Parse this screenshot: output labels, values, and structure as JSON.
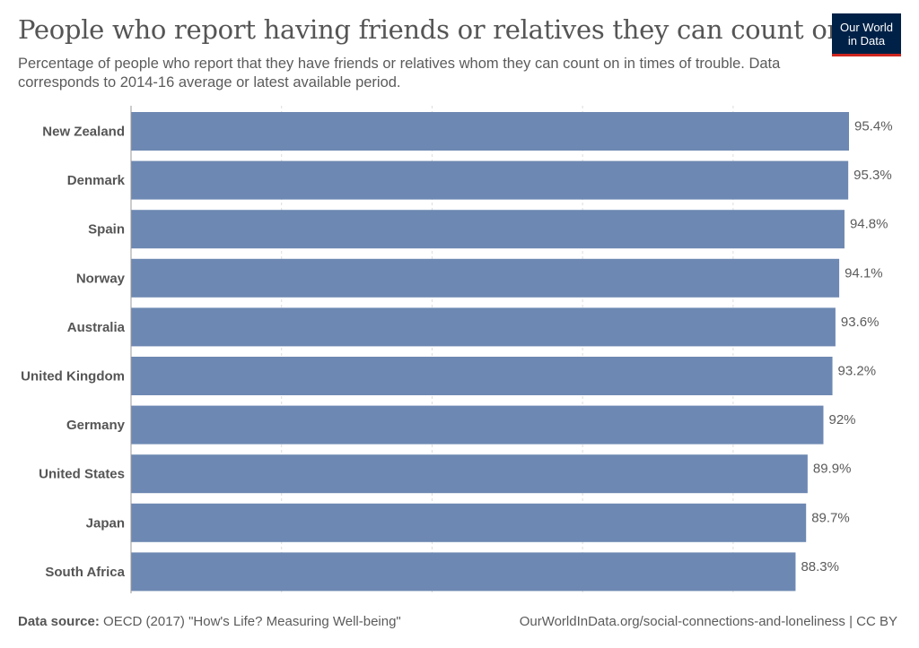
{
  "header": {
    "title": "People who report having friends or relatives they can count on",
    "subtitle": "Percentage of people who report that they have friends or relatives whom they can count on in times of trouble. Data corresponds to 2014-16 average or latest available period.",
    "logo_line1": "Our World",
    "logo_line2": "in Data"
  },
  "footer": {
    "source_label": "Data source:",
    "source_text": "OECD (2017) \"How's Life? Measuring Well-being\"",
    "url_text": "OurWorldInData.org/social-connections-and-loneliness | CC BY"
  },
  "colors": {
    "bar": "#6d88b2",
    "label": "#555555",
    "value_label": "#5b5b5b",
    "grid": "#dddddd",
    "axis": "#999999",
    "logo_bg": "#002147",
    "logo_accent": "#ce261e"
  },
  "chart_data": {
    "type": "bar",
    "orientation": "horizontal",
    "categories": [
      "New Zealand",
      "Denmark",
      "Spain",
      "Norway",
      "Australia",
      "United Kingdom",
      "Germany",
      "United States",
      "Japan",
      "South Africa"
    ],
    "values": [
      95.4,
      95.3,
      94.8,
      94.1,
      93.6,
      93.2,
      92,
      89.9,
      89.7,
      88.3
    ],
    "value_labels": [
      "95.4%",
      "95.3%",
      "94.8%",
      "94.1%",
      "93.6%",
      "93.2%",
      "92%",
      "89.9%",
      "89.7%",
      "88.3%"
    ],
    "xlim": [
      0,
      95.4
    ],
    "unit": "%",
    "grid": true,
    "grid_style": "dashed vertical"
  }
}
